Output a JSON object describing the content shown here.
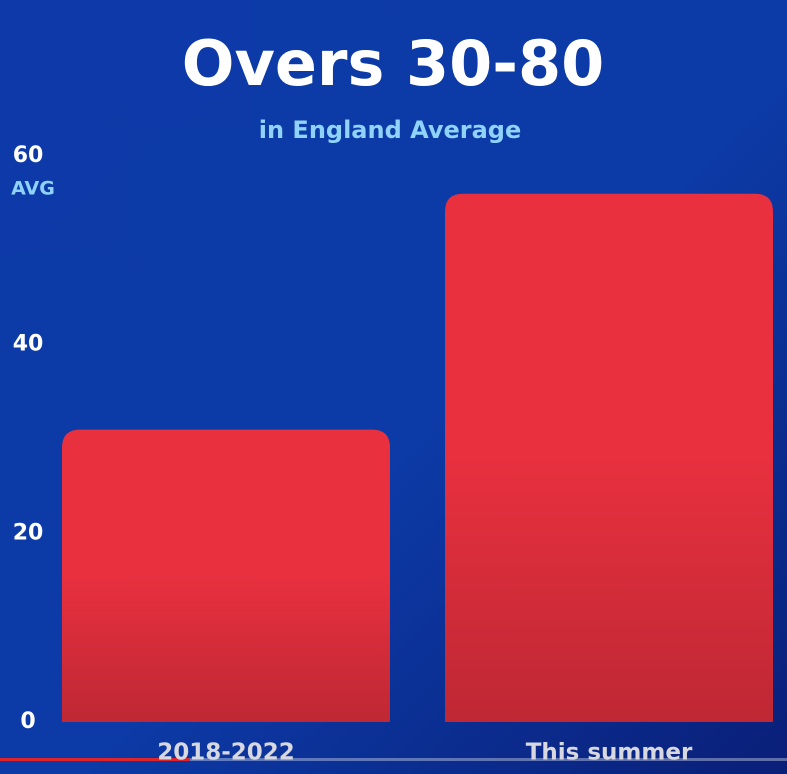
{
  "chart_data": {
    "type": "bar",
    "title": "Overs 30-80",
    "subtitle": "in England Average",
    "y_label": "AVG",
    "categories": [
      "2018-2022",
      "This summer"
    ],
    "values": [
      31,
      56
    ],
    "color": "#e8303f",
    "ylim": [
      0,
      60
    ],
    "yticks": [
      0,
      20,
      40,
      60
    ],
    "grid": false
  }
}
